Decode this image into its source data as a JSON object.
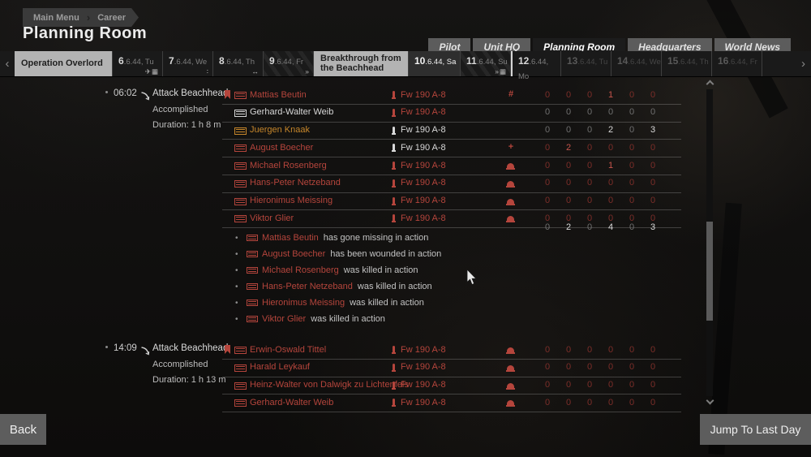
{
  "breadcrumb": {
    "items": [
      "Main Menu",
      "Career"
    ]
  },
  "page_title": "Planning Room",
  "nav_tabs": [
    {
      "label": "Pilot",
      "selected": false
    },
    {
      "label": "Unit HQ",
      "selected": false
    },
    {
      "label": "Planning Room",
      "selected": true
    },
    {
      "label": "Headquarters",
      "selected": false
    },
    {
      "label": "World News",
      "selected": false
    }
  ],
  "date_strip": {
    "prev_arrow": "‹",
    "next_arrow": "›",
    "tabs": [
      {
        "kind": "op",
        "label": "Operation Overlord"
      },
      {
        "kind": "day",
        "day": "6",
        "suffix": ".6.44, Tu",
        "icons": [
          "plane-icon",
          "calendar-icon"
        ],
        "state": "normal"
      },
      {
        "kind": "day",
        "day": "7",
        "suffix": ".6.44, We",
        "icons": [
          "dots-icon"
        ],
        "state": "normal"
      },
      {
        "kind": "day",
        "day": "8",
        "suffix": ".6.44, Th",
        "icons": [
          "transfer-icon"
        ],
        "state": "normal"
      },
      {
        "kind": "day",
        "day": "9",
        "suffix": ".6.44, Fr",
        "icons": [
          "skip-icon"
        ],
        "state": "hatched"
      },
      {
        "kind": "op",
        "label": "Breakthrough from the Beachhead"
      },
      {
        "kind": "day",
        "day": "10",
        "suffix": ".6.44, Sa",
        "icons": [],
        "state": "selected"
      },
      {
        "kind": "day",
        "day": "11",
        "suffix": ".6.44, Su",
        "icons": [
          "skip-icon",
          "calendar-icon"
        ],
        "state": "hatched"
      },
      {
        "kind": "day",
        "day": "12",
        "suffix": ".6.44, Mo",
        "icons": [],
        "state": "normal",
        "mark_left": true
      },
      {
        "kind": "day",
        "day": "13",
        "suffix": ".6.44, Tu",
        "icons": [],
        "state": "future"
      },
      {
        "kind": "day",
        "day": "14",
        "suffix": ".6.44, We",
        "icons": [],
        "state": "future"
      },
      {
        "kind": "day",
        "day": "15",
        "suffix": ".6.44, Th",
        "icons": [],
        "state": "future"
      },
      {
        "kind": "day",
        "day": "16",
        "suffix": ".6.44, Fr",
        "icons": [],
        "state": "future"
      }
    ]
  },
  "missions": [
    {
      "time": "06:02",
      "title": "Attack Beachhead",
      "status": "Accomplished",
      "duration": "Duration: 1 h 8 m",
      "pilots": [
        {
          "flag": true,
          "name": "Mattias Beutin",
          "tone": "red",
          "bomb": "red",
          "aircraft": "Fw 190 A-8",
          "ac_tone": "red",
          "status": "missing",
          "stats": [
            0,
            0,
            0,
            1,
            0,
            0
          ],
          "stats_tone": "red"
        },
        {
          "flag": false,
          "name": "Gerhard-Walter Weib",
          "tone": "white",
          "bomb": "red",
          "aircraft": "Fw 190 A-8",
          "ac_tone": "red",
          "status": null,
          "stats": [
            0,
            0,
            0,
            0,
            0,
            0
          ],
          "stats_tone": "gray"
        },
        {
          "flag": false,
          "name": "Juergen Knaak",
          "tone": "orange",
          "bomb": "white",
          "aircraft": "Fw 190 A-8",
          "ac_tone": "white",
          "status": null,
          "stats": [
            0,
            0,
            0,
            2,
            0,
            3
          ],
          "stats_tone": "gray"
        },
        {
          "flag": false,
          "name": "August Boecher",
          "tone": "red",
          "bomb": "white",
          "aircraft": "Fw 190 A-8",
          "ac_tone": "white",
          "status": "wounded",
          "stats": [
            0,
            2,
            0,
            0,
            0,
            0
          ],
          "stats_tone": "red"
        },
        {
          "flag": false,
          "name": "Michael Rosenberg",
          "tone": "red",
          "bomb": "red",
          "aircraft": "Fw 190 A-8",
          "ac_tone": "red",
          "status": "killed",
          "stats": [
            0,
            0,
            0,
            1,
            0,
            0
          ],
          "stats_tone": "red"
        },
        {
          "flag": false,
          "name": "Hans-Peter Netzeband",
          "tone": "red",
          "bomb": "red",
          "aircraft": "Fw 190 A-8",
          "ac_tone": "red",
          "status": "killed",
          "stats": [
            0,
            0,
            0,
            0,
            0,
            0
          ],
          "stats_tone": "red"
        },
        {
          "flag": false,
          "name": "Hieronimus Meissing",
          "tone": "red",
          "bomb": "red",
          "aircraft": "Fw 190 A-8",
          "ac_tone": "red",
          "status": "killed",
          "stats": [
            0,
            0,
            0,
            0,
            0,
            0
          ],
          "stats_tone": "red"
        },
        {
          "flag": false,
          "name": "Viktor Glier",
          "tone": "red",
          "bomb": "red",
          "aircraft": "Fw 190 A-8",
          "ac_tone": "red",
          "status": "killed",
          "stats": [
            0,
            0,
            0,
            0,
            0,
            0
          ],
          "stats_tone": "red"
        }
      ],
      "totals": [
        0,
        2,
        0,
        4,
        0,
        3
      ],
      "messages": [
        {
          "name": "Mattias Beutin",
          "text": "has gone missing in action"
        },
        {
          "name": "August Boecher",
          "text": "has been wounded in action"
        },
        {
          "name": "Michael Rosenberg",
          "text": "was killed in action"
        },
        {
          "name": "Hans-Peter Netzeband",
          "text": "was killed in action"
        },
        {
          "name": "Hieronimus Meissing",
          "text": "was killed in action"
        },
        {
          "name": "Viktor Glier",
          "text": "was killed in action"
        }
      ]
    },
    {
      "time": "14:09",
      "title": "Attack Beachhead",
      "status": "Accomplished",
      "duration": "Duration: 1 h 13 m",
      "pilots": [
        {
          "flag": true,
          "name": "Erwin-Oswald Tittel",
          "tone": "red",
          "bomb": "red",
          "aircraft": "Fw 190 A-8",
          "ac_tone": "red",
          "status": "killed",
          "stats": [
            0,
            0,
            0,
            0,
            0,
            0
          ],
          "stats_tone": "red"
        },
        {
          "flag": false,
          "name": "Harald Leykauf",
          "tone": "red",
          "bomb": "red",
          "aircraft": "Fw 190 A-8",
          "ac_tone": "red",
          "status": "killed",
          "stats": [
            0,
            0,
            0,
            0,
            0,
            0
          ],
          "stats_tone": "red"
        },
        {
          "flag": false,
          "name": "Heinz-Walter von Dalwigk zu Lichtenfels",
          "tone": "red",
          "bomb": "red",
          "aircraft": "Fw 190 A-8",
          "ac_tone": "red",
          "status": "killed",
          "stats": [
            0,
            0,
            0,
            0,
            0,
            0
          ],
          "stats_tone": "red"
        },
        {
          "flag": false,
          "name": "Gerhard-Walter Weib",
          "tone": "red",
          "bomb": "red",
          "aircraft": "Fw 190 A-8",
          "ac_tone": "red",
          "status": "killed",
          "stats": [
            0,
            0,
            0,
            0,
            0,
            0
          ],
          "stats_tone": "red"
        }
      ],
      "totals": null,
      "messages": []
    }
  ],
  "buttons": {
    "back": "Back",
    "jump": "Jump To Last Day"
  },
  "icon_glyphs": {
    "plane-icon": "✈",
    "calendar-icon": "▦",
    "dots-icon": "∶",
    "transfer-icon": "↔",
    "skip-icon": "»",
    "missing-icon": "#",
    "wounded-icon": "+",
    "bullet": "•"
  },
  "colors": {
    "red": "#b5453c",
    "red_dim": "#7c2e29",
    "red_bright": "#c8554c",
    "orange": "#c5862b",
    "button_bg": "#5d5d5d",
    "selected_tab_bg": "#2e2e2e",
    "light_tab_bg": "#b3b3b3"
  }
}
